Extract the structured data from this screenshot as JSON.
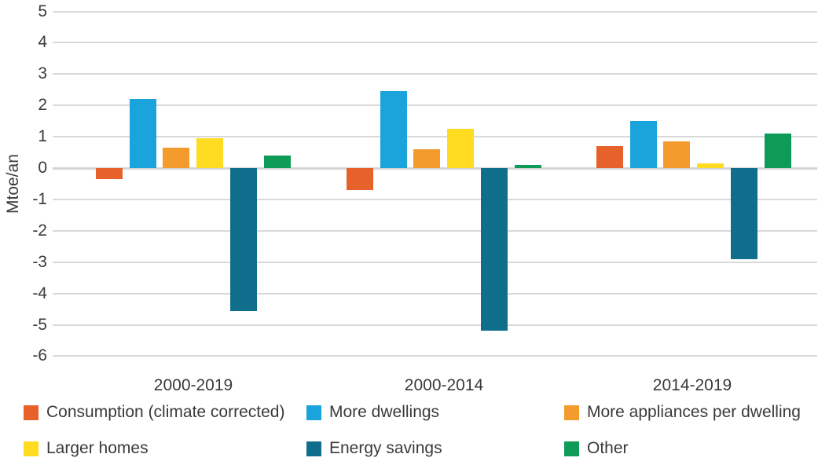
{
  "chart_data": {
    "type": "bar",
    "title": "",
    "xlabel": "",
    "ylabel": "Mtoe/an",
    "ylim": [
      -6,
      5
    ],
    "ytick_step": 1,
    "yticks": [
      5,
      4,
      3,
      2,
      1,
      0,
      -1,
      -2,
      -3,
      -4,
      -5,
      -6
    ],
    "grid": true,
    "legend_position": "bottom",
    "categories": [
      "2000-2019",
      "2000-2014",
      "2014-2019"
    ],
    "series": [
      {
        "name": "Consumption (climate corrected)",
        "color": "#E7622A",
        "values": [
          -0.35,
          -0.7,
          0.7
        ]
      },
      {
        "name": "More dwellings",
        "color": "#1BA4DB",
        "values": [
          2.2,
          2.45,
          1.5
        ]
      },
      {
        "name": "More appliances per dwelling",
        "color": "#F49B2E",
        "values": [
          0.65,
          0.6,
          0.85
        ]
      },
      {
        "name": "Larger homes",
        "color": "#FFDB21",
        "values": [
          0.95,
          1.25,
          0.15
        ]
      },
      {
        "name": "Energy savings",
        "color": "#0E6E8C",
        "values": [
          -4.55,
          -5.2,
          -2.9
        ]
      },
      {
        "name": "Other",
        "color": "#0D9B57",
        "values": [
          0.4,
          0.1,
          1.1
        ]
      }
    ]
  },
  "colors": {
    "background": "#FFFFFF",
    "gridline": "#D9D9D9",
    "text": "#3A3A3A"
  }
}
